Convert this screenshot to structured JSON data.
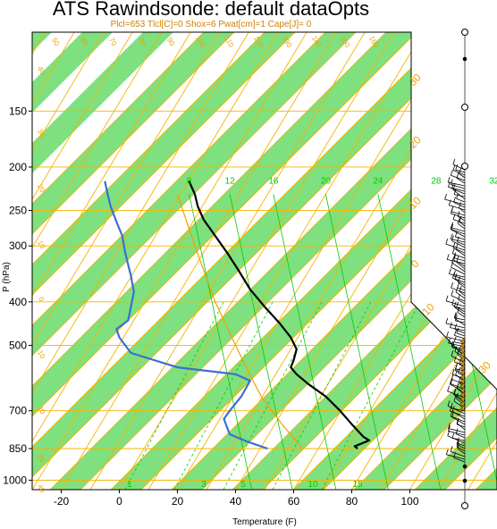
{
  "title": "ATS Rawindsonde: default dataOpts",
  "subtitle": "Plcl=653 Tlcl[C]=0 Shox=6 Pwat[cm]=1 Cape[J]= 0",
  "colors": {
    "band": "#7ee07e",
    "isotherm": "#f5b400",
    "mixing_ratio": "#00cc00",
    "temperature": "#000000",
    "dewpoint": "#3b6fd4",
    "parcel": "#f0a000"
  },
  "chart_data": {
    "type": "line",
    "title": "ATS Rawindsonde: default dataOpts",
    "subtitle": "Plcl=653 Tlcl[C]=0 Shox=6 Pwat[cm]=1 Cape[J]= 0",
    "xlabel": "Temperature (F)",
    "ylabel": "P (hPa)",
    "xlim": [
      -30,
      130
    ],
    "ylim": [
      1050,
      100
    ],
    "y_scale": "log",
    "x_ticks": [
      "-20",
      "0",
      "20",
      "40",
      "60",
      "80",
      "100"
    ],
    "x_tick_values": [
      -20,
      0,
      20,
      40,
      60,
      80,
      100
    ],
    "y_ticks": [
      "150",
      "200",
      "250",
      "300",
      "400",
      "500",
      "700",
      "850",
      "1000"
    ],
    "y_tick_values": [
      150,
      200,
      250,
      300,
      400,
      500,
      700,
      850,
      1000
    ],
    "mixing_ratio_labels": [
      "8",
      "12",
      "16",
      "20",
      "24",
      "28",
      "32"
    ],
    "mixing_ratio_label_x": [
      -37,
      -23,
      -8,
      10,
      28,
      48,
      68
    ],
    "bottom_mix_labels": [
      "1",
      "3",
      "5",
      "10",
      "15"
    ],
    "isotherm_labels_right": [
      "30",
      "20",
      "10",
      "0",
      "10",
      "30"
    ],
    "isotherm_labels_top": [
      "50",
      "60",
      "70",
      "80",
      "90",
      "100",
      "110",
      "120",
      "130",
      "140",
      "150",
      "160"
    ],
    "isotherm_labels_left": [
      "40",
      "30",
      "20",
      "10",
      "0",
      "10",
      "20",
      "30",
      "40"
    ],
    "series": [
      {
        "name": "",
        "role": "temperature",
        "points": [
          {
            "p": 215,
            "t": 24
          },
          {
            "p": 230,
            "t": 26
          },
          {
            "p": 245,
            "t": 27
          },
          {
            "p": 262,
            "t": 29
          },
          {
            "p": 285,
            "t": 33
          },
          {
            "p": 310,
            "t": 37
          },
          {
            "p": 340,
            "t": 41
          },
          {
            "p": 375,
            "t": 45
          },
          {
            "p": 410,
            "t": 50
          },
          {
            "p": 445,
            "t": 55
          },
          {
            "p": 480,
            "t": 59
          },
          {
            "p": 510,
            "t": 61
          },
          {
            "p": 540,
            "t": 60
          },
          {
            "p": 560,
            "t": 59
          },
          {
            "p": 580,
            "t": 61
          },
          {
            "p": 610,
            "t": 65
          },
          {
            "p": 650,
            "t": 71
          },
          {
            "p": 700,
            "t": 76
          },
          {
            "p": 750,
            "t": 80
          },
          {
            "p": 800,
            "t": 84
          },
          {
            "p": 815,
            "t": 86
          },
          {
            "p": 830,
            "t": 83
          },
          {
            "p": 840,
            "t": 81
          },
          {
            "p": 850,
            "t": 82
          }
        ]
      },
      {
        "name": "",
        "role": "dewpoint",
        "points": [
          {
            "p": 215,
            "t": -5
          },
          {
            "p": 230,
            "t": -4
          },
          {
            "p": 245,
            "t": -3
          },
          {
            "p": 265,
            "t": -1
          },
          {
            "p": 285,
            "t": 1
          },
          {
            "p": 310,
            "t": 2
          },
          {
            "p": 330,
            "t": 3
          },
          {
            "p": 350,
            "t": 4
          },
          {
            "p": 380,
            "t": 5
          },
          {
            "p": 410,
            "t": 4
          },
          {
            "p": 440,
            "t": 3
          },
          {
            "p": 460,
            "t": -1
          },
          {
            "p": 480,
            "t": 0
          },
          {
            "p": 520,
            "t": 4
          },
          {
            "p": 560,
            "t": 20
          },
          {
            "p": 580,
            "t": 40
          },
          {
            "p": 600,
            "t": 45
          },
          {
            "p": 650,
            "t": 42
          },
          {
            "p": 700,
            "t": 38
          },
          {
            "p": 730,
            "t": 36
          },
          {
            "p": 760,
            "t": 37
          },
          {
            "p": 790,
            "t": 38
          },
          {
            "p": 820,
            "t": 44
          },
          {
            "p": 850,
            "t": 51
          }
        ]
      },
      {
        "name": "",
        "role": "parcel",
        "points": [
          {
            "p": 230,
            "t": 20
          },
          {
            "p": 300,
            "t": 26
          },
          {
            "p": 400,
            "t": 33
          },
          {
            "p": 500,
            "t": 40
          },
          {
            "p": 600,
            "t": 46
          },
          {
            "p": 653,
            "t": 49
          },
          {
            "p": 750,
            "t": 56
          },
          {
            "p": 850,
            "t": 63
          }
        ]
      }
    ],
    "wind_profile": "wind barbs along right-hand staff, 100–1000 hPa"
  }
}
